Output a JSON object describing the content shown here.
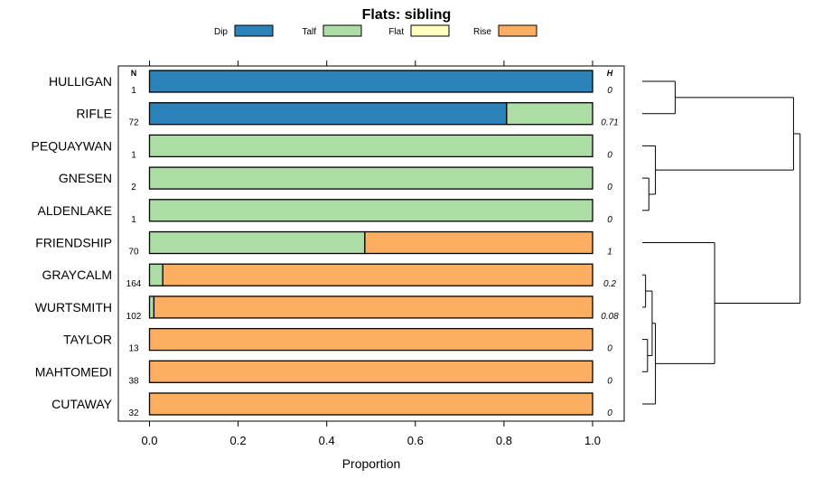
{
  "chart_data": {
    "type": "bar",
    "orientation": "horizontal-stacked",
    "title": "Flats: sibling",
    "xlabel": "Proportion",
    "xlim": [
      0,
      1
    ],
    "xticks": [
      "0.0",
      "0.2",
      "0.4",
      "0.6",
      "0.8",
      "1.0"
    ],
    "xtick_values": [
      0,
      0.2,
      0.4,
      0.6,
      0.8,
      1.0
    ],
    "n_header": "N",
    "h_header": "H",
    "legend": [
      {
        "name": "Dip",
        "color": "#2b83ba"
      },
      {
        "name": "Talf",
        "color": "#abdda4"
      },
      {
        "name": "Flat",
        "color": "#ffffbf"
      },
      {
        "name": "Rise",
        "color": "#fdae61"
      }
    ],
    "categories": [
      "HULLIGAN",
      "RIFLE",
      "PEQUAYWAN",
      "GNESEN",
      "ALDENLAKE",
      "FRIENDSHIP",
      "GRAYCALM",
      "WURTSMITH",
      "TAYLOR",
      "MAHTOMEDI",
      "CUTAWAY"
    ],
    "n": [
      "1",
      "72",
      "1",
      "2",
      "1",
      "70",
      "164",
      "102",
      "13",
      "38",
      "32"
    ],
    "h": [
      "0",
      "0.71",
      "0",
      "0",
      "0",
      "1",
      "0.2",
      "0.08",
      "0",
      "0",
      "0"
    ],
    "series": [
      {
        "name": "Dip",
        "values": [
          1.0,
          0.806,
          0,
          0,
          0,
          0,
          0,
          0,
          0,
          0,
          0
        ]
      },
      {
        "name": "Talf",
        "values": [
          0,
          0.194,
          1.0,
          1.0,
          1.0,
          0.486,
          0.03,
          0.01,
          0,
          0,
          0
        ]
      },
      {
        "name": "Flat",
        "values": [
          0,
          0,
          0,
          0,
          0,
          0,
          0,
          0,
          0,
          0,
          0
        ]
      },
      {
        "name": "Rise",
        "values": [
          0,
          0,
          0,
          0,
          0,
          0.514,
          0.97,
          0.99,
          1.0,
          1.0,
          1.0
        ]
      }
    ],
    "dendrogram": {
      "description": "hierarchical clustering of rows",
      "merges": [
        {
          "left": "HULLIGAN",
          "right": "RIFLE",
          "height": 0.5
        },
        {
          "left": "GNESEN",
          "right": "ALDENLAKE",
          "height": 0.1
        },
        {
          "left": "PEQUAYWAN",
          "right": "GNESEN+ALDENLAKE",
          "height": 0.2
        },
        {
          "left": "HULLIGAN+RIFLE",
          "right": "PEQUAYWAN+GNESEN+ALDENLAKE",
          "height": 2.3
        },
        {
          "left": "GRAYCALM",
          "right": "WURTSMITH",
          "height": 0.05
        },
        {
          "left": "TAYLOR",
          "right": "MAHTOMEDI",
          "height": 0.08
        },
        {
          "left": "GRAYCALM+WURTSMITH",
          "right": "TAYLOR+MAHTOMEDI",
          "height": 0.15
        },
        {
          "left": "GRAYCALM+WURTSMITH+TAYLOR+MAHTOMEDI",
          "right": "CUTAWAY",
          "height": 0.2
        },
        {
          "left": "FRIENDSHIP",
          "right": "GRAYCALM+WURTSMITH+TAYLOR+MAHTOMEDI+CUTAWAY",
          "height": 1.1
        },
        {
          "left": "top-cluster",
          "right": "bottom-cluster",
          "height": 2.4
        }
      ],
      "max_height": 2.5
    }
  }
}
